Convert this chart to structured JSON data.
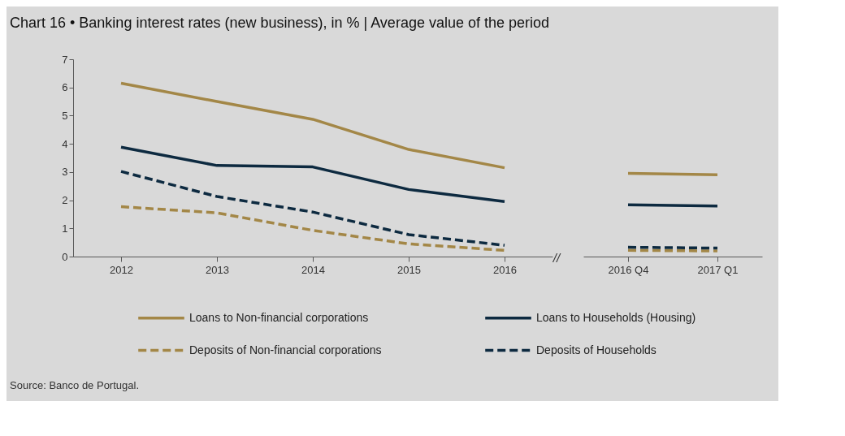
{
  "chart_data": [
    {
      "type": "line",
      "title": "Chart 16 • Banking interest rates (new business), in % | Average value of the period",
      "categories": [
        "2012",
        "2013",
        "2014",
        "2015",
        "2016"
      ],
      "ylim": [
        0,
        7
      ],
      "yticks": [
        0,
        1,
        2,
        3,
        4,
        5,
        6,
        7
      ],
      "grid": false,
      "legend": "bottom",
      "annotations": [
        "Source: Banco de Portugal."
      ],
      "series": [
        {
          "name": "Loans to Non-financial corporations",
          "color": "#a38747",
          "line_style": "solid",
          "values": [
            6.15,
            5.5,
            4.87,
            3.8,
            3.15
          ]
        },
        {
          "name": "Loans to Households (Housing)",
          "color": "#0d2a40",
          "line_style": "solid",
          "values": [
            3.88,
            3.23,
            3.18,
            2.38,
            1.95
          ]
        },
        {
          "name": "Deposits of Non-financial corporations",
          "color": "#a38747",
          "line_style": "dashed",
          "values": [
            1.77,
            1.55,
            0.93,
            0.45,
            0.22
          ]
        },
        {
          "name": "Deposits of Households",
          "color": "#0d2a40",
          "line_style": "dashed",
          "values": [
            3.02,
            2.13,
            1.58,
            0.78,
            0.4
          ]
        }
      ]
    },
    {
      "type": "line",
      "categories": [
        "2016 Q4",
        "2017 Q1"
      ],
      "ylim": [
        0,
        7
      ],
      "yticks": [
        0,
        1,
        2,
        3,
        4,
        5,
        6,
        7
      ],
      "grid": false,
      "tick_labels": "x",
      "annotations": [
        "//"
      ],
      "series": [
        {
          "color": "#a38747",
          "line_style": "solid",
          "values": [
            2.95,
            2.9
          ]
        },
        {
          "color": "#0d2a40",
          "line_style": "solid",
          "values": [
            1.84,
            1.79
          ]
        },
        {
          "color": "#a38747",
          "line_style": "dashed",
          "values": [
            0.22,
            0.2
          ]
        },
        {
          "color": "#0d2a40",
          "line_style": "dashed",
          "values": [
            0.33,
            0.3
          ]
        }
      ]
    }
  ]
}
